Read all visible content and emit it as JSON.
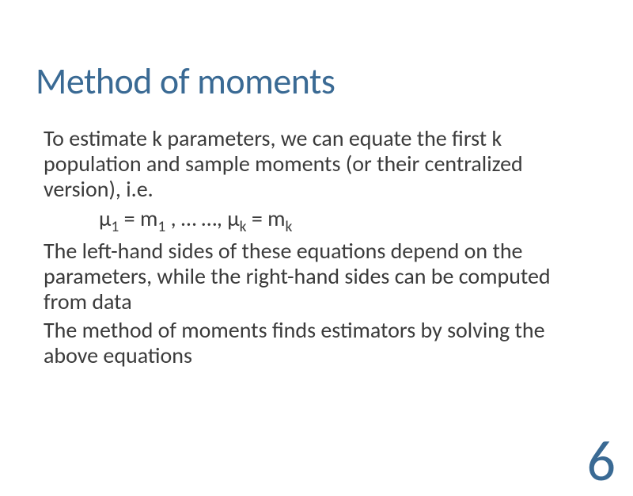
{
  "slide": {
    "title": "Method of moments",
    "paragraph1": "To estimate k parameters, we can equate the first k population and sample moments (or their centralized version), i.e.",
    "equation": {
      "mu": "μ",
      "m": "m",
      "sub1": "1",
      "subk": "k",
      "eq": " = ",
      "sep1": " , … …, ",
      "sep2": " = "
    },
    "paragraph2": "The left-hand sides of these equations depend on the parameters, while the right-hand sides can be computed from data",
    "paragraph3": "The method of moments finds estimators by solving the above equations",
    "page_number": "6"
  },
  "styling": {
    "background_color": "#ffffff",
    "title_color": "#3a6a94",
    "body_color": "#3b3b3b",
    "title_fontsize": 46,
    "body_fontsize": 28,
    "page_number_fontsize": 72,
    "font_family": "Calibri"
  }
}
